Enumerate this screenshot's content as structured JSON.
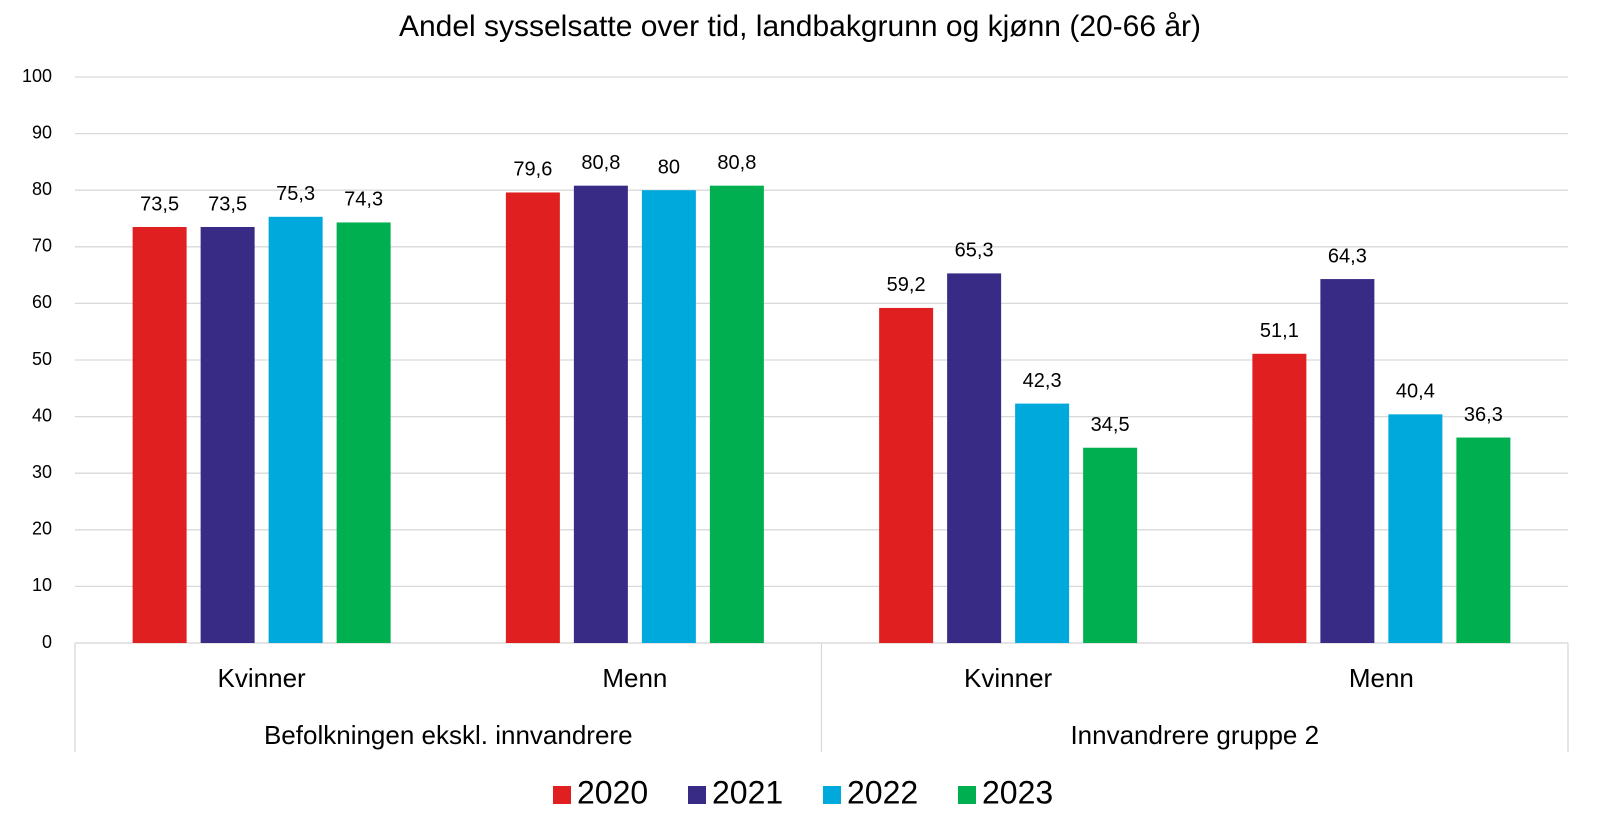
{
  "chart_data": {
    "type": "bar",
    "title": "Andel sysselsatte over tid, landbakgrunn og kjønn (20-66 år)",
    "categories": [
      "Kvinner",
      "Menn",
      "Kvinner",
      "Menn"
    ],
    "groups": [
      "Befolkningen ekskl. innvandrere",
      "Innvandrere gruppe 2"
    ],
    "series": [
      {
        "name": "2020",
        "color": "#e02020",
        "values": [
          73.5,
          79.6,
          59.2,
          51.1
        ],
        "value_labels": [
          "73,5",
          "79,6",
          "59,2",
          "51,1"
        ]
      },
      {
        "name": "2021",
        "color": "#372b86",
        "values": [
          73.5,
          80.8,
          65.3,
          64.3
        ],
        "value_labels": [
          "73,5",
          "80,8",
          "65,3",
          "64,3"
        ]
      },
      {
        "name": "2022",
        "color": "#00a9dc",
        "values": [
          75.3,
          80,
          42.3,
          40.4
        ],
        "value_labels": [
          "75,3",
          "80",
          "42,3",
          "40,4"
        ]
      },
      {
        "name": "2023",
        "color": "#00b050",
        "values": [
          74.3,
          80.8,
          34.5,
          36.3
        ],
        "value_labels": [
          "74,3",
          "80,8",
          "34,5",
          "36,3"
        ]
      }
    ],
    "ylim": [
      0,
      100
    ],
    "yticks": [
      0,
      10,
      20,
      30,
      40,
      50,
      60,
      70,
      80,
      90,
      100
    ],
    "grid": true,
    "legend": "bottom"
  }
}
